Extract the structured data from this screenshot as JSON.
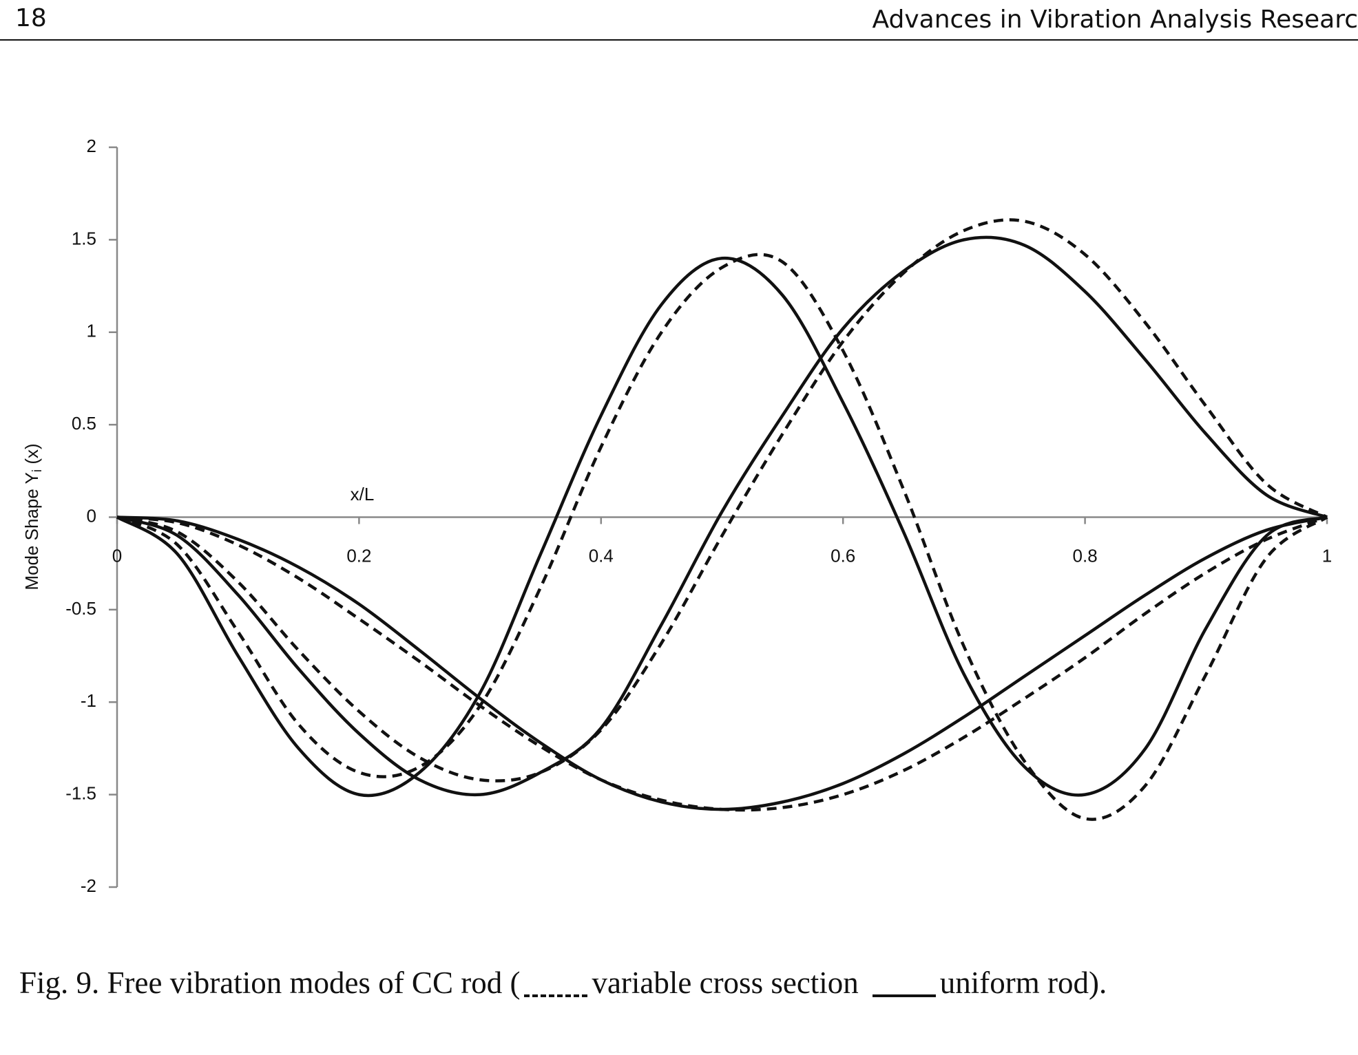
{
  "header": {
    "page_number": "18",
    "running_title": "Advances in Vibration Analysis Researc"
  },
  "chart_data": {
    "type": "line",
    "y_label": {
      "text": "Mode Shape Y",
      "subscript": "i",
      "suffix": " (x)"
    },
    "x_label": "x/L",
    "x": [
      0,
      0.05,
      0.1,
      0.15,
      0.2,
      0.25,
      0.3,
      0.35,
      0.4,
      0.45,
      0.5,
      0.55,
      0.6,
      0.65,
      0.7,
      0.75,
      0.8,
      0.85,
      0.9,
      0.95,
      1
    ],
    "xlim": [
      0,
      1
    ],
    "xticks": [
      0,
      0.2,
      0.4,
      0.6,
      0.8,
      1
    ],
    "ylim": [
      -2,
      2
    ],
    "yticks": [
      -2,
      -1.5,
      -1,
      -0.5,
      0,
      0.5,
      1,
      1.5,
      2
    ],
    "series": [
      {
        "color": "#111111",
        "style": "solid",
        "values": [
          0,
          -0.02,
          -0.12,
          -0.27,
          -0.47,
          -0.72,
          -0.98,
          -1.22,
          -1.42,
          -1.54,
          -1.58,
          -1.54,
          -1.44,
          -1.28,
          -1.08,
          -0.86,
          -0.64,
          -0.42,
          -0.22,
          -0.07,
          0
        ]
      },
      {
        "color": "#111111",
        "style": "dashed",
        "values": [
          0,
          -0.03,
          -0.15,
          -0.33,
          -0.55,
          -0.78,
          -1.02,
          -1.24,
          -1.42,
          -1.53,
          -1.58,
          -1.57,
          -1.5,
          -1.37,
          -1.19,
          -0.98,
          -0.76,
          -0.52,
          -0.3,
          -0.12,
          0
        ]
      },
      {
        "color": "#111111",
        "style": "solid",
        "values": [
          0,
          -0.1,
          -0.42,
          -0.82,
          -1.17,
          -1.42,
          -1.5,
          -1.38,
          -1.14,
          -0.58,
          0.03,
          0.55,
          1.02,
          1.33,
          1.5,
          1.47,
          1.22,
          0.85,
          0.45,
          0.12,
          0
        ]
      },
      {
        "color": "#111111",
        "style": "dashed",
        "values": [
          0,
          -0.08,
          -0.35,
          -0.72,
          -1.05,
          -1.3,
          -1.42,
          -1.38,
          -1.15,
          -0.68,
          -0.1,
          0.45,
          0.95,
          1.32,
          1.55,
          1.6,
          1.42,
          1.05,
          0.6,
          0.18,
          0
        ]
      },
      {
        "color": "#111111",
        "style": "solid",
        "values": [
          0,
          -0.2,
          -0.75,
          -1.25,
          -1.5,
          -1.38,
          -0.95,
          -0.2,
          0.55,
          1.15,
          1.4,
          1.2,
          0.62,
          -0.08,
          -0.85,
          -1.35,
          -1.5,
          -1.25,
          -0.6,
          -0.1,
          0
        ]
      },
      {
        "color": "#111111",
        "style": "dashed",
        "values": [
          0,
          -0.15,
          -0.62,
          -1.12,
          -1.38,
          -1.35,
          -1.02,
          -0.38,
          0.38,
          1.0,
          1.35,
          1.38,
          0.9,
          0.15,
          -0.7,
          -1.32,
          -1.63,
          -1.45,
          -0.85,
          -0.22,
          0
        ]
      }
    ]
  },
  "caption": {
    "prefix": "Fig. 9. Free vibration modes of CC rod (",
    "variable": "variable cross section",
    "uniform": "uniform rod)."
  }
}
